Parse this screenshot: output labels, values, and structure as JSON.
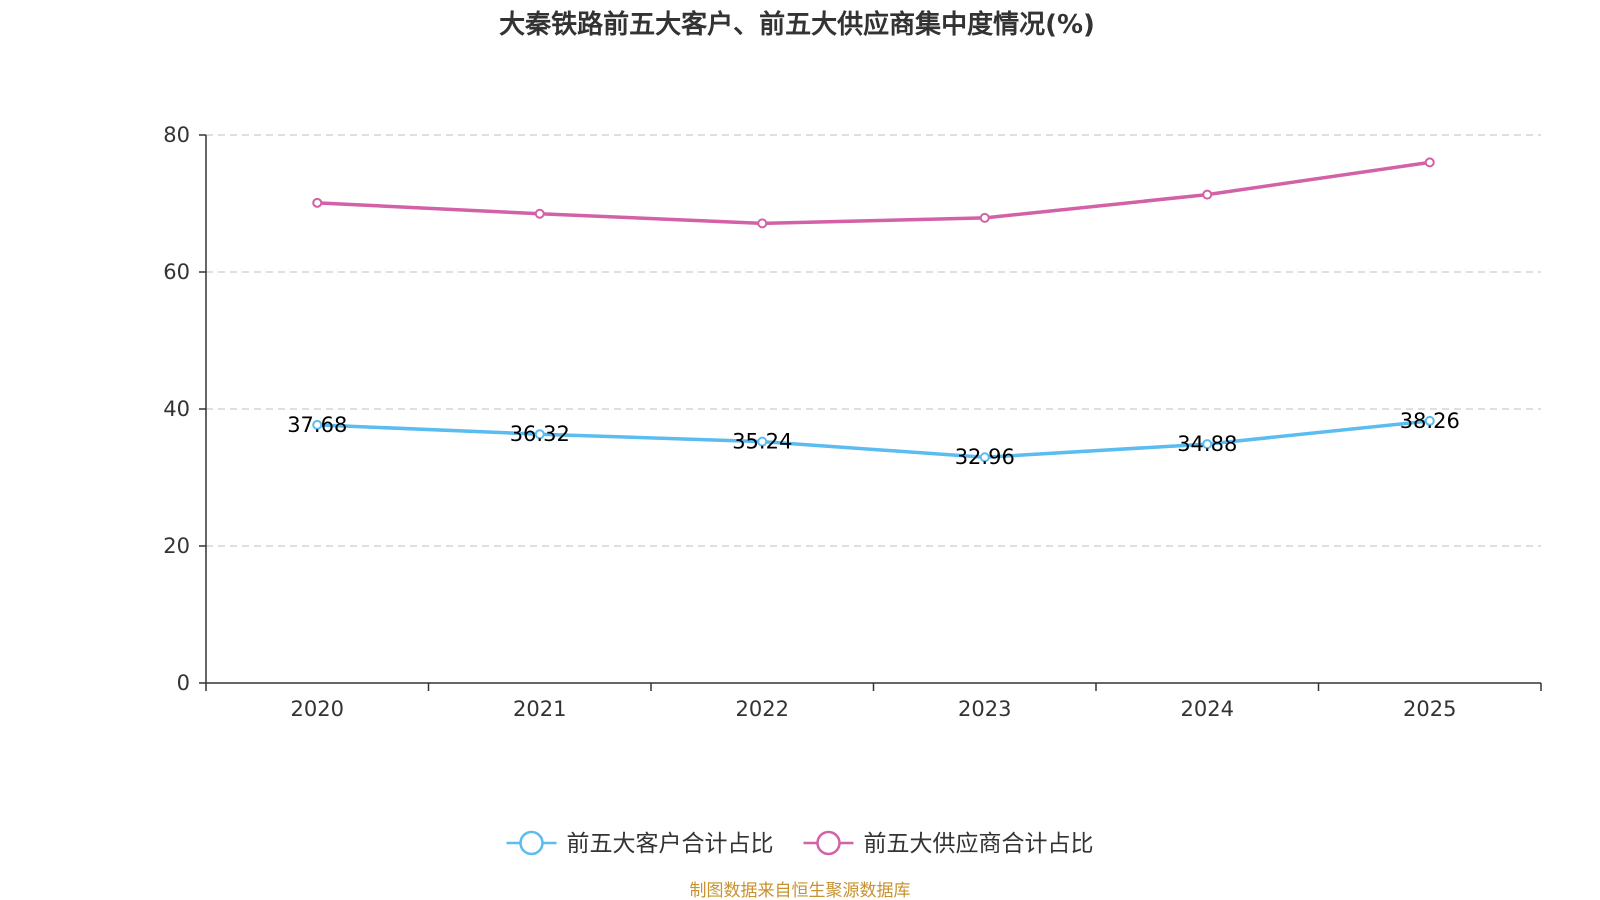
{
  "chart_data": {
    "type": "line",
    "title": "大秦铁路前五大客户、前五大供应商集中度情况(%)",
    "categories": [
      "2020",
      "2021",
      "2022",
      "2023",
      "2024",
      "2025"
    ],
    "ylim": [
      0,
      80
    ],
    "yticks": [
      0,
      20,
      40,
      60,
      80
    ],
    "grid": true,
    "legend_position": "bottom-center",
    "series": [
      {
        "name": "前五大客户合计占比",
        "color": "#5bbcef",
        "values": [
          37.68,
          36.32,
          35.24,
          32.96,
          34.88,
          38.26
        ],
        "labels": [
          "37.68",
          "36.32",
          "35.24",
          "32.96",
          "34.88",
          "38.26"
        ],
        "show_labels": true
      },
      {
        "name": "前五大供应商合计占比",
        "color": "#d361a7",
        "values": [
          70.1,
          68.5,
          67.1,
          67.9,
          71.3,
          76.0
        ],
        "show_labels": false
      }
    ]
  },
  "source_text": "制图数据来自恒生聚源数据库",
  "source_color": "#c8922e"
}
